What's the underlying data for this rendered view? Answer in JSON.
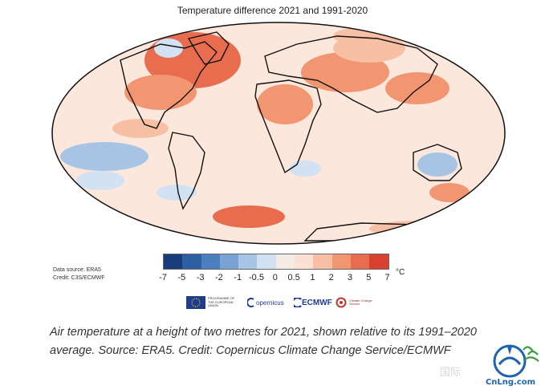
{
  "map": {
    "title": "Temperature difference 2021 and 1991-2020",
    "data_source": "Data source: ERA5",
    "credit": "Credit: C3S/ECMWF"
  },
  "legend": {
    "unit": "°C",
    "ticks": [
      "-7",
      "-5",
      "-3",
      "-2",
      "-1",
      "-0.5",
      "0",
      "0.5",
      "1",
      "2",
      "3",
      "5",
      "7"
    ],
    "colors": [
      "#1a3c7a",
      "#2d5fa3",
      "#4c7fbf",
      "#7aa3d4",
      "#a7c4e5",
      "#d3e2f2",
      "#f4ebe5",
      "#fbe0d3",
      "#f7bfa4",
      "#f29672",
      "#e86d4e",
      "#d8412f",
      "#a3201e"
    ]
  },
  "logos": {
    "eu_text": "PROGRAMME OF THE EUROPEAN UNION",
    "copernicus": "opernicus",
    "ecmwf": "ECMWF",
    "third": "Climate Change Service"
  },
  "caption": "Air temperature at a height of two metres for 2021, shown relative to its 1991–2020 average. Source: ERA5. Credit: Copernicus Climate Change Service/ECMWF",
  "watermark": {
    "site": "CnLng.com",
    "chinese": "国际"
  }
}
